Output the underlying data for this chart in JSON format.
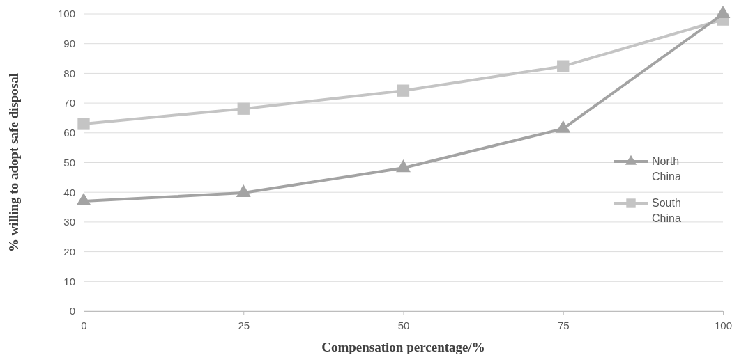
{
  "chart_data": {
    "type": "line",
    "xlabel": "Compensation percentage/%",
    "ylabel": "% willing to adopt safe disposal",
    "x": [
      0,
      25,
      50,
      75,
      100
    ],
    "series": [
      {
        "name": "North China",
        "color": "#a3a3a3",
        "marker": "triangle",
        "values": [
          37.0,
          39.8,
          48.2,
          61.4,
          100
        ]
      },
      {
        "name": "South China",
        "color": "#c4c4c4",
        "marker": "square",
        "values": [
          63.0,
          68.1,
          74.2,
          82.4,
          98.1
        ]
      }
    ],
    "xlim": [
      0,
      100
    ],
    "xticks": [
      0,
      25,
      50,
      75,
      100
    ],
    "ylim": [
      0,
      100
    ],
    "yticks": [
      0,
      10,
      20,
      30,
      40,
      50,
      60,
      70,
      80,
      90,
      100
    ],
    "grid": "y",
    "legend": "right",
    "line_style": "solid"
  }
}
